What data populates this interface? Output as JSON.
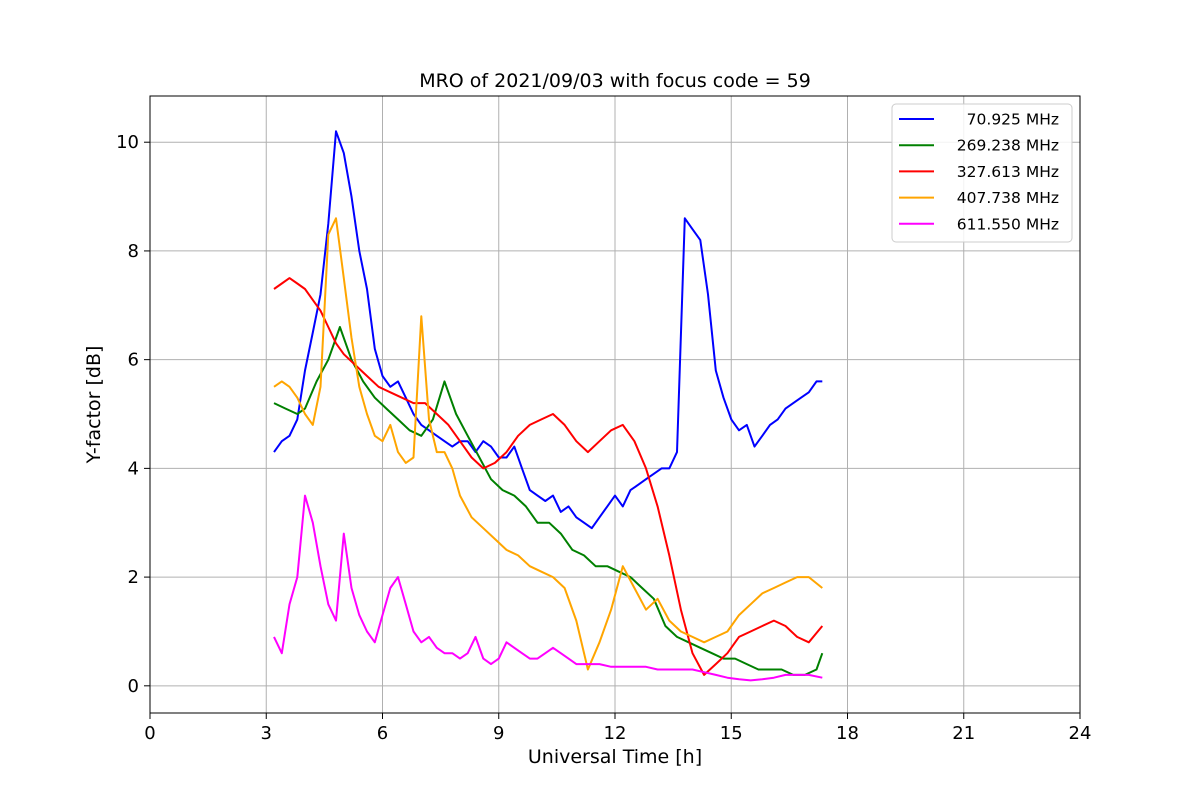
{
  "chart_data": {
    "type": "line",
    "title": "MRO of 2021/09/03 with focus code = 59",
    "xlabel": "Universal Time [h]",
    "ylabel": "Y-factor [dB]",
    "xlim": [
      0,
      24
    ],
    "ylim": [
      -0.5,
      10.85
    ],
    "xticks": [
      0,
      3,
      6,
      9,
      12,
      15,
      18,
      21,
      24
    ],
    "yticks": [
      0,
      2,
      4,
      6,
      8,
      10
    ],
    "grid": true,
    "legend_position": "top-right",
    "series": [
      {
        "name": "70.925 MHz",
        "color": "#0000ff",
        "x": [
          3.2,
          3.4,
          3.6,
          3.8,
          4.0,
          4.2,
          4.4,
          4.6,
          4.8,
          5.0,
          5.2,
          5.4,
          5.6,
          5.8,
          6.0,
          6.2,
          6.4,
          6.6,
          6.8,
          7.0,
          7.2,
          7.4,
          7.6,
          7.8,
          8.0,
          8.2,
          8.4,
          8.6,
          8.8,
          9.0,
          9.2,
          9.4,
          9.6,
          9.8,
          10.0,
          10.2,
          10.4,
          10.6,
          10.8,
          11.0,
          11.2,
          11.4,
          11.6,
          11.8,
          12.0,
          12.2,
          12.4,
          12.6,
          12.8,
          13.0,
          13.2,
          13.4,
          13.6,
          13.8,
          14.0,
          14.2,
          14.4,
          14.6,
          14.8,
          15.0,
          15.2,
          15.4,
          15.6,
          15.8,
          16.0,
          16.2,
          16.4,
          16.6,
          16.8,
          17.0,
          17.2,
          17.35
        ],
        "y": [
          4.3,
          4.5,
          4.6,
          4.9,
          5.8,
          6.5,
          7.2,
          8.5,
          10.2,
          9.8,
          9.0,
          8.0,
          7.3,
          6.2,
          5.7,
          5.5,
          5.6,
          5.3,
          5.0,
          4.8,
          4.7,
          4.6,
          4.5,
          4.4,
          4.5,
          4.5,
          4.3,
          4.5,
          4.4,
          4.2,
          4.2,
          4.4,
          4.0,
          3.6,
          3.5,
          3.4,
          3.5,
          3.2,
          3.3,
          3.1,
          3.0,
          2.9,
          3.1,
          3.3,
          3.5,
          3.3,
          3.6,
          3.7,
          3.8,
          3.9,
          4.0,
          4.0,
          4.3,
          8.6,
          8.4,
          8.2,
          7.2,
          5.8,
          5.3,
          4.9,
          4.7,
          4.8,
          4.4,
          4.6,
          4.8,
          4.9,
          5.1,
          5.2,
          5.3,
          5.4,
          5.6,
          5.6
        ]
      },
      {
        "name": "269.238 MHz",
        "color": "#008000",
        "x": [
          3.2,
          3.5,
          3.8,
          4.0,
          4.3,
          4.6,
          4.9,
          5.2,
          5.5,
          5.8,
          6.1,
          6.4,
          6.7,
          7.0,
          7.3,
          7.6,
          7.9,
          8.2,
          8.5,
          8.8,
          9.1,
          9.4,
          9.7,
          10.0,
          10.3,
          10.6,
          10.9,
          11.2,
          11.5,
          11.8,
          12.1,
          12.4,
          12.7,
          13.0,
          13.3,
          13.6,
          13.9,
          14.2,
          14.5,
          14.8,
          15.1,
          15.4,
          15.7,
          16.0,
          16.3,
          16.6,
          16.9,
          17.2,
          17.35
        ],
        "y": [
          5.2,
          5.1,
          5.0,
          5.1,
          5.6,
          6.0,
          6.6,
          6.0,
          5.6,
          5.3,
          5.1,
          4.9,
          4.7,
          4.6,
          4.9,
          5.6,
          5.0,
          4.6,
          4.2,
          3.8,
          3.6,
          3.5,
          3.3,
          3.0,
          3.0,
          2.8,
          2.5,
          2.4,
          2.2,
          2.2,
          2.1,
          2.0,
          1.8,
          1.6,
          1.1,
          0.9,
          0.8,
          0.7,
          0.6,
          0.5,
          0.5,
          0.4,
          0.3,
          0.3,
          0.3,
          0.2,
          0.2,
          0.3,
          0.6
        ]
      },
      {
        "name": "327.613 MHz",
        "color": "#ff0000",
        "x": [
          3.2,
          3.4,
          3.6,
          3.8,
          4.0,
          4.2,
          4.4,
          4.6,
          4.8,
          5.0,
          5.3,
          5.6,
          5.9,
          6.2,
          6.5,
          6.8,
          7.1,
          7.4,
          7.7,
          8.0,
          8.3,
          8.6,
          8.9,
          9.2,
          9.5,
          9.8,
          10.1,
          10.4,
          10.7,
          11.0,
          11.3,
          11.6,
          11.9,
          12.2,
          12.5,
          12.8,
          13.1,
          13.4,
          13.7,
          14.0,
          14.3,
          14.6,
          14.9,
          15.2,
          15.5,
          15.8,
          16.1,
          16.4,
          16.7,
          17.0,
          17.35
        ],
        "y": [
          7.3,
          7.4,
          7.5,
          7.4,
          7.3,
          7.1,
          6.9,
          6.6,
          6.3,
          6.1,
          5.9,
          5.7,
          5.5,
          5.4,
          5.3,
          5.2,
          5.2,
          5.0,
          4.8,
          4.5,
          4.2,
          4.0,
          4.1,
          4.3,
          4.6,
          4.8,
          4.9,
          5.0,
          4.8,
          4.5,
          4.3,
          4.5,
          4.7,
          4.8,
          4.5,
          4.0,
          3.3,
          2.4,
          1.4,
          0.6,
          0.2,
          0.4,
          0.6,
          0.9,
          1.0,
          1.1,
          1.2,
          1.1,
          0.9,
          0.8,
          1.1
        ]
      },
      {
        "name": "407.738 MHz",
        "color": "#ffa500",
        "x": [
          3.2,
          3.4,
          3.6,
          3.8,
          4.0,
          4.2,
          4.4,
          4.6,
          4.8,
          5.0,
          5.2,
          5.4,
          5.6,
          5.8,
          6.0,
          6.2,
          6.4,
          6.6,
          6.8,
          7.0,
          7.2,
          7.4,
          7.6,
          7.8,
          8.0,
          8.3,
          8.6,
          8.9,
          9.2,
          9.5,
          9.8,
          10.1,
          10.4,
          10.7,
          11.0,
          11.3,
          11.6,
          11.9,
          12.2,
          12.5,
          12.8,
          13.1,
          13.4,
          13.7,
          14.0,
          14.3,
          14.6,
          14.9,
          15.2,
          15.5,
          15.8,
          16.1,
          16.4,
          16.7,
          17.0,
          17.35
        ],
        "y": [
          5.5,
          5.6,
          5.5,
          5.3,
          5.0,
          4.8,
          5.5,
          8.3,
          8.6,
          7.5,
          6.4,
          5.5,
          5.0,
          4.6,
          4.5,
          4.8,
          4.3,
          4.1,
          4.2,
          6.8,
          4.9,
          4.3,
          4.3,
          4.0,
          3.5,
          3.1,
          2.9,
          2.7,
          2.5,
          2.4,
          2.2,
          2.1,
          2.0,
          1.8,
          1.2,
          0.3,
          0.8,
          1.4,
          2.2,
          1.8,
          1.4,
          1.6,
          1.2,
          1.0,
          0.9,
          0.8,
          0.9,
          1.0,
          1.3,
          1.5,
          1.7,
          1.8,
          1.9,
          2.0,
          2.0,
          1.8
        ]
      },
      {
        "name": "611.550 MHz",
        "color": "#ff00ff",
        "x": [
          3.2,
          3.4,
          3.6,
          3.8,
          4.0,
          4.2,
          4.4,
          4.6,
          4.8,
          5.0,
          5.2,
          5.4,
          5.6,
          5.8,
          6.0,
          6.2,
          6.4,
          6.6,
          6.8,
          7.0,
          7.2,
          7.4,
          7.6,
          7.8,
          8.0,
          8.2,
          8.4,
          8.6,
          8.8,
          9.0,
          9.2,
          9.4,
          9.6,
          9.8,
          10.0,
          10.2,
          10.4,
          10.6,
          10.8,
          11.0,
          11.3,
          11.6,
          11.9,
          12.2,
          12.5,
          12.8,
          13.1,
          13.4,
          13.7,
          14.0,
          14.3,
          14.6,
          14.9,
          15.2,
          15.5,
          15.8,
          16.1,
          16.4,
          16.7,
          17.0,
          17.35
        ],
        "y": [
          0.9,
          0.6,
          1.5,
          2.0,
          3.5,
          3.0,
          2.2,
          1.5,
          1.2,
          2.8,
          1.8,
          1.3,
          1.0,
          0.8,
          1.3,
          1.8,
          2.0,
          1.5,
          1.0,
          0.8,
          0.9,
          0.7,
          0.6,
          0.6,
          0.5,
          0.6,
          0.9,
          0.5,
          0.4,
          0.5,
          0.8,
          0.7,
          0.6,
          0.5,
          0.5,
          0.6,
          0.7,
          0.6,
          0.5,
          0.4,
          0.4,
          0.4,
          0.35,
          0.35,
          0.35,
          0.35,
          0.3,
          0.3,
          0.3,
          0.3,
          0.25,
          0.2,
          0.15,
          0.12,
          0.1,
          0.12,
          0.15,
          0.2,
          0.2,
          0.2,
          0.15
        ]
      }
    ]
  }
}
